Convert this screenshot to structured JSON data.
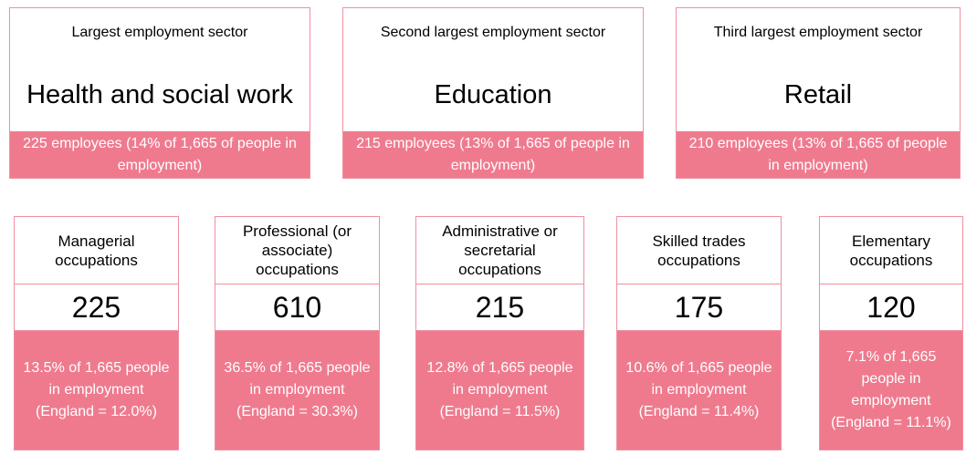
{
  "sectors": [
    {
      "heading": "Largest employment sector",
      "name": "Health and social work",
      "detail": "225 employees (14% of 1,665 of people in employment)"
    },
    {
      "heading": "Second largest employment sector",
      "name": "Education",
      "detail": "215 employees (13% of 1,665 of people in employment)"
    },
    {
      "heading": "Third largest employment sector",
      "name": "Retail",
      "detail": "210 employees (13% of 1,665 of people in employment)"
    }
  ],
  "occupations": [
    {
      "heading": "Managerial occupations",
      "count": "225",
      "detail": "13.5% of 1,665 people in employment (England = 12.0%)"
    },
    {
      "heading": "Professional (or associate) occupations",
      "count": "610",
      "detail": "36.5% of 1,665 people in employment (England = 30.3%)"
    },
    {
      "heading": "Administrative or secretarial occupations",
      "count": "215",
      "detail": "12.8% of 1,665 people in employment (England = 11.5%)"
    },
    {
      "heading": "Skilled trades occupations",
      "count": "175",
      "detail": "10.6% of 1,665 people in employment (England = 11.4%)"
    },
    {
      "heading": "Elementary occupations",
      "count": "120",
      "detail": "7.1% of 1,665 people in employment (England = 11.1%)"
    }
  ]
}
